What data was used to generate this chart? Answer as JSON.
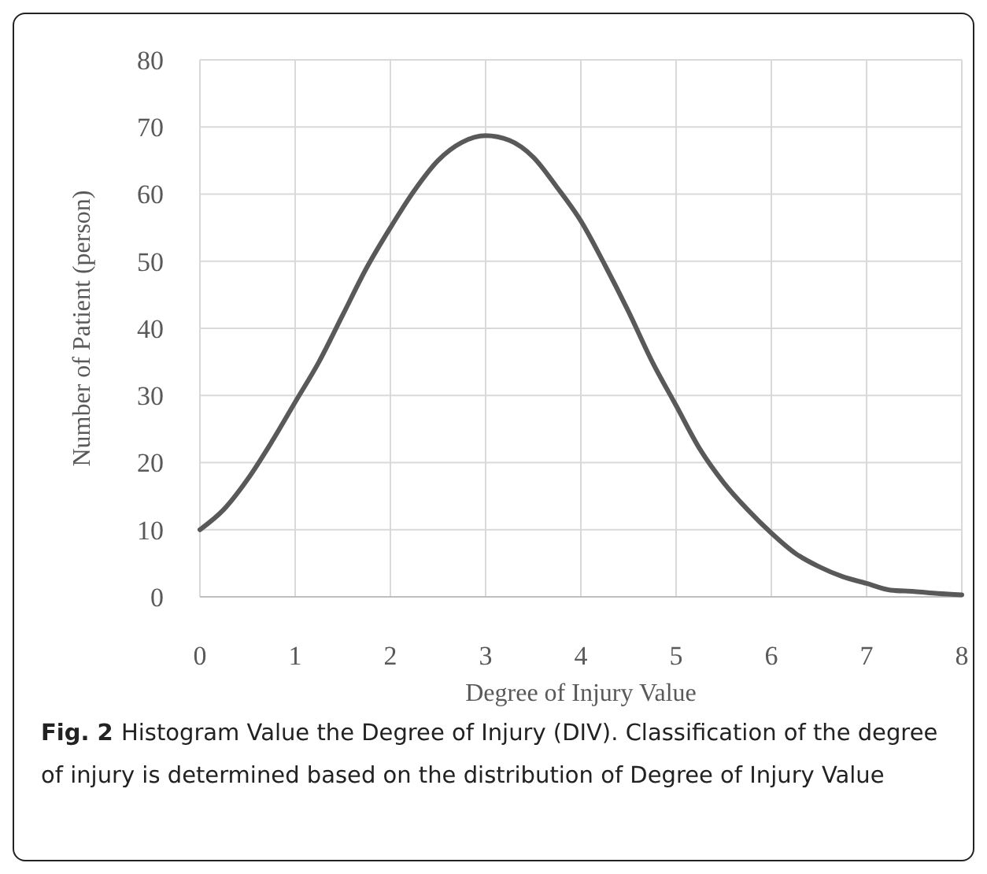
{
  "chart_data": {
    "type": "line",
    "xlabel": "Degree of Injury Value",
    "ylabel": "Number of  Patient (person)",
    "annotations": [
      "Fig. 2",
      "Histogram Value the Degree of Injury (DIV). Classification of the degree of injury is determined based on the distribution of Degree of Injury Value"
    ],
    "x": [
      0,
      0.25,
      0.5,
      0.75,
      1,
      1.25,
      1.5,
      1.75,
      2,
      2.25,
      2.5,
      2.75,
      3,
      3.25,
      3.5,
      3.75,
      4,
      4.25,
      4.5,
      4.75,
      5,
      5.25,
      5.5,
      5.75,
      6,
      6.25,
      6.5,
      6.75,
      7,
      7.25,
      7.5,
      7.75,
      8
    ],
    "series": [
      {
        "color": "#595959",
        "values": [
          10,
          13,
          17.5,
          23,
          29,
          35,
          42,
          49,
          55,
          60.5,
          65,
          67.7,
          68.7,
          68,
          65.5,
          61,
          56,
          49.5,
          42.5,
          35,
          28.5,
          22,
          17,
          13,
          9.5,
          6.5,
          4.5,
          3,
          2,
          1,
          0.8,
          0.5,
          0.3
        ]
      }
    ],
    "xlim": [
      0,
      8
    ],
    "xticks": [
      0,
      1,
      2,
      3,
      4,
      5,
      6,
      7,
      8
    ],
    "ylim": [
      0,
      80
    ],
    "yticks": [
      0,
      10,
      20,
      30,
      40,
      50,
      60,
      70,
      80
    ],
    "grid": true,
    "marker": "none",
    "line_style": "solid"
  }
}
